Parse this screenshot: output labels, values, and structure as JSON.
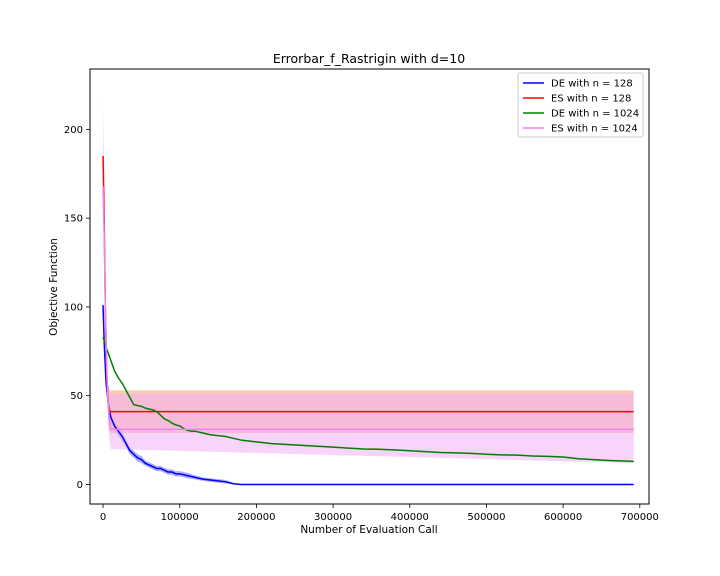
{
  "chart_data": {
    "type": "line",
    "title": "Errorbar_f_Rastrigin with d=10",
    "xlabel": "Number of Evaluation Call",
    "ylabel": "Objective Function",
    "xlim": [
      -17000,
      712000
    ],
    "ylim": [
      -11,
      234
    ],
    "xticks": [
      0,
      100000,
      200000,
      300000,
      400000,
      500000,
      600000,
      700000
    ],
    "xtick_labels": [
      "0",
      "100000",
      "200000",
      "300000",
      "400000",
      "500000",
      "600000",
      "700000"
    ],
    "yticks": [
      0,
      50,
      100,
      150,
      200
    ],
    "ytick_labels": [
      "0",
      "50",
      "100",
      "150",
      "200"
    ],
    "grid": false,
    "legend_position": "top-right",
    "series": [
      {
        "name": "DE with n = 128",
        "color": "#0000ff",
        "band_color": "#6a6aff",
        "x": [
          0,
          1500,
          4000,
          7000,
          10000,
          15000,
          20000,
          25000,
          30000,
          35000,
          40000,
          45000,
          50000,
          55000,
          60000,
          65000,
          70000,
          75000,
          80000,
          85000,
          90000,
          95000,
          100000,
          110000,
          120000,
          130000,
          140000,
          150000,
          160000,
          165000,
          170000,
          175000,
          180000,
          200000,
          300000,
          400000,
          500000,
          600000,
          692000
        ],
        "y": [
          101,
          80,
          57,
          45,
          38,
          33,
          30,
          27,
          23,
          19,
          17,
          15,
          14,
          12,
          11,
          10,
          9,
          9,
          8,
          7,
          7,
          6,
          6,
          5,
          4,
          3,
          2.5,
          2,
          1.5,
          1,
          0.4,
          0.2,
          0,
          0,
          0,
          0,
          0,
          0,
          0
        ],
        "band": [
          3,
          3,
          3,
          3,
          3,
          2.5,
          2.5,
          2.5,
          2,
          2,
          2,
          2,
          2,
          1.5,
          1.5,
          1.5,
          1.5,
          1.5,
          1.5,
          1.5,
          1.5,
          1.5,
          1.5,
          1.5,
          1.2,
          1,
          1,
          1,
          1,
          0.8,
          0.3,
          0.1,
          0,
          0,
          0,
          0,
          0,
          0,
          0
        ]
      },
      {
        "name": "ES with n = 128",
        "color": "#ff0000",
        "band_color": "#f5a07a",
        "x": [
          0,
          1500,
          3000,
          5000,
          7000,
          9000,
          692000
        ],
        "y": [
          185,
          150,
          100,
          60,
          44,
          41,
          41
        ],
        "band": [
          0,
          0,
          0,
          0,
          12,
          12,
          12
        ]
      },
      {
        "name": "DE with n = 1024",
        "color": "#008000",
        "band_color": "#8ef08e",
        "x": [
          0,
          5000,
          10000,
          15000,
          20000,
          25000,
          30000,
          35000,
          40000,
          45000,
          50000,
          55000,
          60000,
          65000,
          70000,
          75000,
          80000,
          85000,
          90000,
          95000,
          100000,
          105000,
          110000,
          115000,
          120000,
          130000,
          140000,
          150000,
          160000,
          170000,
          180000,
          190000,
          200000,
          220000,
          240000,
          260000,
          280000,
          300000,
          320000,
          340000,
          360000,
          380000,
          400000,
          420000,
          440000,
          460000,
          480000,
          500000,
          520000,
          540000,
          560000,
          580000,
          600000,
          620000,
          640000,
          660000,
          692000
        ],
        "y": [
          83,
          76,
          70,
          64,
          60,
          57,
          53,
          49,
          45,
          44.5,
          44,
          43,
          42.5,
          42,
          41,
          39,
          37,
          36,
          34.5,
          33.5,
          33,
          31.5,
          30.5,
          30,
          30,
          29,
          28,
          27.5,
          27,
          26,
          25,
          24.5,
          24,
          23,
          22.5,
          22,
          21.5,
          21,
          20.5,
          20,
          19.8,
          19.5,
          19,
          18.5,
          18,
          17.8,
          17.5,
          17,
          16.7,
          16.5,
          16,
          15.8,
          15.5,
          14.5,
          14,
          13.5,
          13
        ]
      },
      {
        "name": "ES with n = 1024",
        "color": "#ee82ee",
        "band_color": "#f2aef5",
        "x": [
          0,
          1500,
          3000,
          4500,
          6000,
          8000,
          10000,
          692000
        ],
        "y": [
          168,
          140,
          100,
          70,
          50,
          38,
          31,
          31
        ],
        "band_lower": [
          168,
          140,
          95,
          55,
          40,
          27,
          20,
          12
        ],
        "band_upper": [
          215,
          175,
          120,
          80,
          60,
          52,
          51,
          51
        ]
      }
    ]
  }
}
